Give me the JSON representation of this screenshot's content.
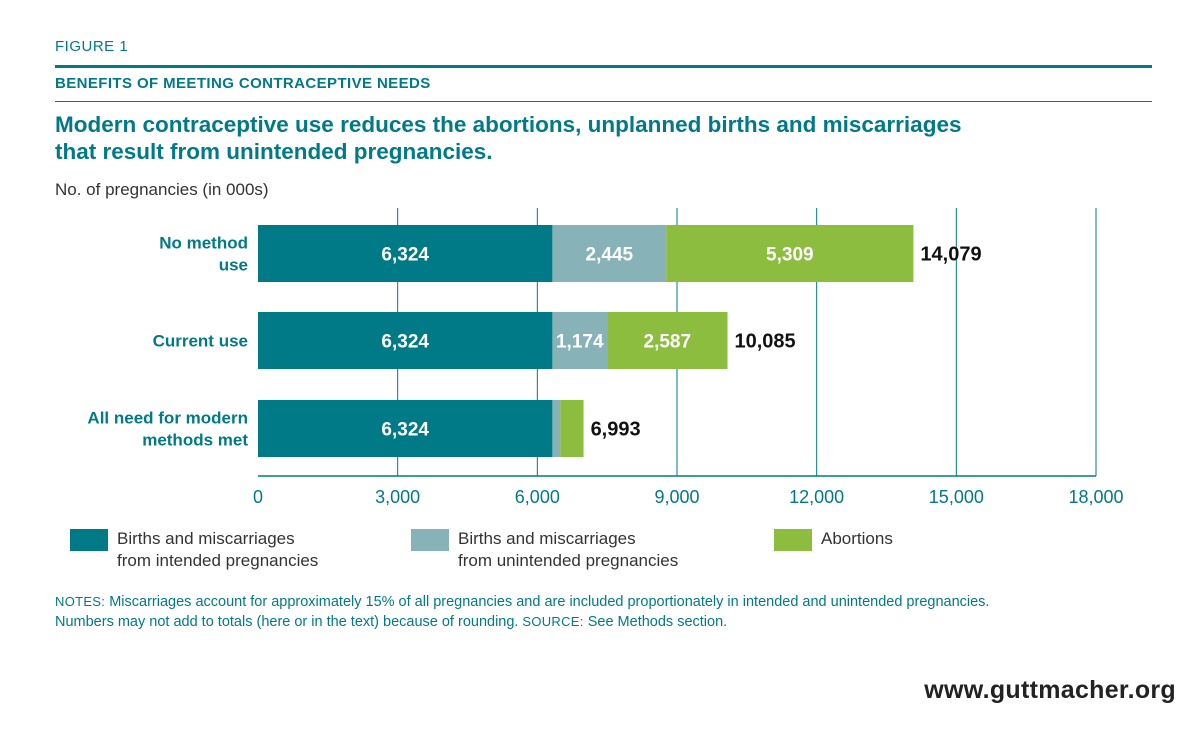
{
  "figure_label": "FIGURE 1",
  "kicker": "BENEFITS OF MEETING CONTRACEPTIVE NEEDS",
  "headline_line1": "Modern contraceptive use reduces the abortions, unplanned births and miscarriages",
  "headline_line2": "that result from unintended pregnancies.",
  "chart_data": {
    "type": "bar",
    "orientation": "horizontal",
    "stacked": true,
    "ylabel": "No. of pregnancies (in 000s)",
    "categories": [
      [
        "No method",
        "use"
      ],
      [
        "Current use"
      ],
      [
        "All need for modern",
        "methods met"
      ]
    ],
    "series": [
      {
        "name": "Births and miscarriages from intended pregnancies",
        "color": "#007a87",
        "values": [
          6324,
          6324,
          6324
        ]
      },
      {
        "name": "Births and miscarriages from unintended pregnancies",
        "color": "#87b2b8",
        "values": [
          2445,
          1174,
          169
        ]
      },
      {
        "name": "Abortions",
        "color": "#8cbd3f",
        "values": [
          5309,
          2587,
          500
        ]
      }
    ],
    "segment_labels": [
      [
        "6,324",
        "2,445",
        "5,309"
      ],
      [
        "6,324",
        "1,174",
        "2,587"
      ],
      [
        "6,324",
        "",
        ""
      ]
    ],
    "totals": [
      "14,079",
      "10,085",
      "6,993"
    ],
    "xlim": [
      0,
      18000
    ],
    "xticks": [
      0,
      3000,
      6000,
      9000,
      12000,
      15000,
      18000
    ],
    "xtick_labels": [
      "0",
      "3,000",
      "6,000",
      "9,000",
      "12,000",
      "15,000",
      "18,000"
    ],
    "grid": true
  },
  "legend": [
    {
      "line1": "Births and miscarriages",
      "line2": "from intended pregnancies",
      "color": "#007a87"
    },
    {
      "line1": "Births and miscarriages",
      "line2": "from unintended pregnancies",
      "color": "#87b2b8"
    },
    {
      "line1": "Abortions",
      "line2": "",
      "color": "#8cbd3f"
    }
  ],
  "notes": {
    "notes_label": "NOTES:",
    "notes_text": " Miscarriages account for approximately 15% of all pregnancies and are included proportionately in intended and unintended pregnancies.",
    "notes_text2": "Numbers may not add to totals (here or in the text) because of rounding.",
    "source_label": " SOURCE:",
    "source_text": " See Methods section."
  },
  "footer_url": "www.guttmacher.org"
}
